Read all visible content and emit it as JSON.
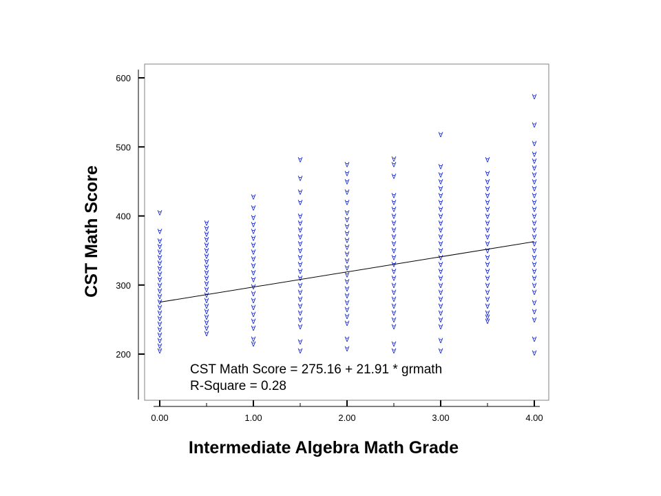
{
  "chart_data": {
    "type": "scatter",
    "xlabel": "Intermediate Algebra Math Grade",
    "ylabel": "CST Math Score",
    "xlim": [
      -0.17,
      4.17
    ],
    "ylim": [
      135,
      620
    ],
    "x_ticks": [
      {
        "value": 0.0,
        "label": "0.00"
      },
      {
        "value": 1.0,
        "label": "1.00"
      },
      {
        "value": 2.0,
        "label": "2.00"
      },
      {
        "value": 3.0,
        "label": "3.00"
      },
      {
        "value": 4.0,
        "label": "4.00"
      }
    ],
    "x_minor_ticks": [
      0.5,
      1.5,
      2.5,
      3.5
    ],
    "y_ticks": [
      {
        "value": 200,
        "label": "200"
      },
      {
        "value": 300,
        "label": "300"
      },
      {
        "value": 400,
        "label": "400"
      },
      {
        "value": 500,
        "label": "500"
      },
      {
        "value": 600,
        "label": "600"
      }
    ],
    "marker_glyph": "∀",
    "marker_color": "#1c2fd1",
    "grid": false,
    "columns": [
      {
        "x": 0.0,
        "y": [
          205,
          212,
          220,
          228,
          236,
          244,
          252,
          260,
          268,
          276,
          284,
          292,
          300,
          308,
          316,
          324,
          332,
          340,
          348,
          356,
          364,
          378,
          405
        ]
      },
      {
        "x": 0.5,
        "y": [
          230,
          238,
          246,
          254,
          262,
          270,
          278,
          286,
          294,
          302,
          310,
          318,
          326,
          334,
          342,
          350,
          358,
          366,
          374,
          382,
          390
        ]
      },
      {
        "x": 1.0,
        "y": [
          215,
          222,
          238,
          248,
          258,
          268,
          278,
          288,
          298,
          308,
          318,
          328,
          338,
          348,
          358,
          368,
          378,
          388,
          398,
          412,
          428
        ]
      },
      {
        "x": 1.5,
        "y": [
          205,
          218,
          240,
          250,
          260,
          270,
          280,
          290,
          300,
          310,
          320,
          330,
          340,
          350,
          360,
          370,
          380,
          390,
          400,
          420,
          435,
          455,
          482
        ]
      },
      {
        "x": 2.0,
        "y": [
          208,
          222,
          245,
          255,
          265,
          275,
          285,
          295,
          305,
          315,
          325,
          335,
          345,
          355,
          365,
          375,
          385,
          395,
          405,
          420,
          435,
          450,
          462,
          475
        ]
      },
      {
        "x": 2.5,
        "y": [
          205,
          215,
          240,
          250,
          260,
          270,
          280,
          290,
          300,
          310,
          320,
          330,
          340,
          350,
          360,
          370,
          380,
          390,
          400,
          410,
          420,
          430,
          458,
          475,
          483
        ]
      },
      {
        "x": 3.0,
        "y": [
          205,
          220,
          240,
          250,
          260,
          270,
          280,
          290,
          300,
          310,
          320,
          330,
          340,
          350,
          360,
          370,
          380,
          390,
          400,
          410,
          420,
          430,
          440,
          450,
          460,
          472,
          518
        ]
      },
      {
        "x": 3.5,
        "y": [
          248,
          254,
          260,
          270,
          280,
          290,
          300,
          310,
          320,
          330,
          340,
          350,
          360,
          370,
          380,
          390,
          400,
          410,
          420,
          430,
          440,
          450,
          462,
          482
        ]
      },
      {
        "x": 4.0,
        "y": [
          202,
          222,
          250,
          262,
          275,
          290,
          300,
          310,
          320,
          330,
          340,
          350,
          360,
          370,
          380,
          390,
          400,
          410,
          420,
          430,
          440,
          450,
          460,
          470,
          480,
          490,
          505,
          532,
          573
        ]
      }
    ],
    "regression": {
      "intercept": 275.16,
      "slope": 21.91,
      "x_range": [
        0,
        4
      ]
    },
    "annotations": [
      "CST Math Score = 275.16 + 21.91 * grmath",
      "R-Square = 0.28"
    ]
  }
}
